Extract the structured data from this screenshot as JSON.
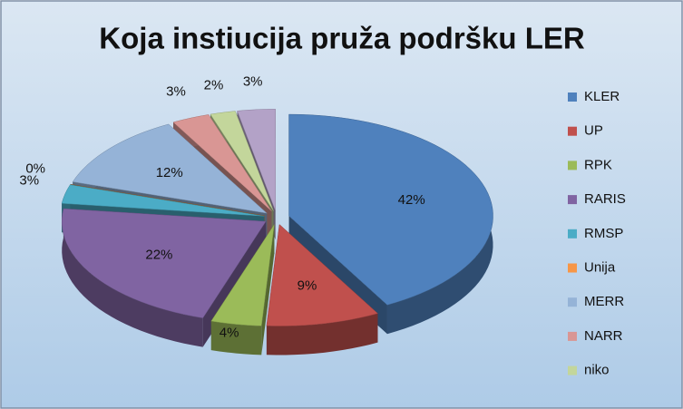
{
  "chart_data": {
    "type": "pie",
    "title": "Koja instiucija pruža podršku LER",
    "categories": [
      "KLER",
      "UP",
      "RPK",
      "RARIS",
      "RMSP",
      "Unija",
      "MERR",
      "NARR",
      "niko",
      null
    ],
    "values": [
      42,
      9,
      4,
      22,
      3,
      0,
      12,
      3,
      2,
      3
    ],
    "value_labels": [
      "42%",
      "9%",
      "4%",
      "22%",
      "3%",
      "0%",
      "12%",
      "3%",
      "2%",
      "3%"
    ],
    "colors": [
      "#4f81bd",
      "#c0504d",
      "#9bbb59",
      "#8064a2",
      "#4bacc6",
      "#f79646",
      "#95b3d7",
      "#d99694",
      "#c3d69b",
      "#b3a2c7"
    ],
    "legend": "right"
  }
}
